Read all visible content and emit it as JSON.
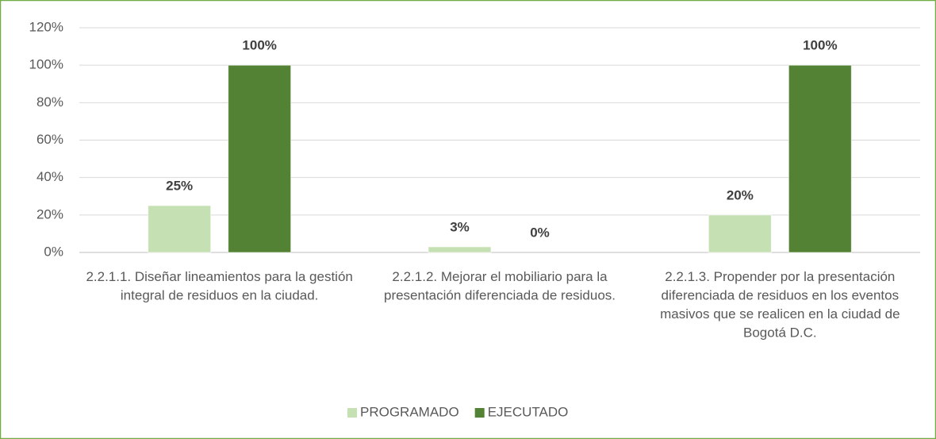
{
  "chart_data": {
    "type": "bar",
    "categories": [
      "2.2.1.1. Diseñar lineamientos para la gestión integral de residuos en la ciudad.",
      "2.2.1.2. Mejorar el mobiliario para la presentación diferenciada de residuos.",
      "2.2.1.3. Propender por la presentación diferenciada de residuos en los eventos masivos que se realicen en la ciudad de Bogotá D.C."
    ],
    "series": [
      {
        "name": "PROGRAMADO",
        "color": "#c5e0b3",
        "values": [
          25,
          3,
          20
        ],
        "value_labels": [
          "25%",
          "3%",
          "20%"
        ]
      },
      {
        "name": "EJECUTADO",
        "color": "#548235",
        "values": [
          100,
          0,
          100
        ],
        "value_labels": [
          "100%",
          "0%",
          "100%"
        ]
      }
    ],
    "ylim": [
      0,
      120
    ],
    "yticks": [
      {
        "value": 0,
        "label": "0%"
      },
      {
        "value": 20,
        "label": "20%"
      },
      {
        "value": 40,
        "label": "40%"
      },
      {
        "value": 60,
        "label": "60%"
      },
      {
        "value": 80,
        "label": "80%"
      },
      {
        "value": 100,
        "label": "100%"
      },
      {
        "value": 120,
        "label": "120%"
      }
    ],
    "grid": true,
    "legend": "bottom"
  }
}
